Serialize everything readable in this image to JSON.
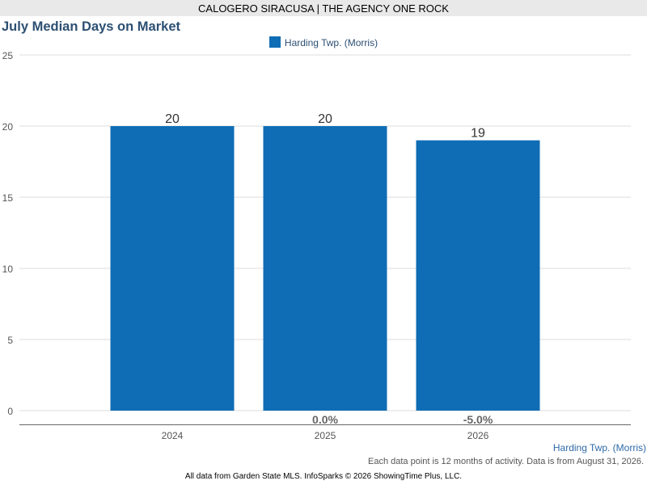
{
  "header": {
    "banner": "CALOGERO SIRACUSA | THE AGENCY ONE ROCK"
  },
  "legend": {
    "label": "Harding Twp. (Morris)"
  },
  "chart_data": {
    "type": "bar",
    "title": "July Median Days on Market",
    "categories": [
      "2024",
      "2025",
      "2026"
    ],
    "series": [
      {
        "name": "Harding Twp. (Morris)",
        "values": [
          20,
          20,
          19
        ],
        "color": "#0f6db5"
      }
    ],
    "value_labels": [
      "20",
      "20",
      "19"
    ],
    "change_labels": [
      "",
      "0.0%",
      "-5.0%"
    ],
    "ylim": [
      0,
      25
    ],
    "yticks": [
      0,
      5,
      10,
      15,
      20,
      25
    ],
    "xlabel": "",
    "ylabel": "",
    "grid": true,
    "legend_position": "top-center"
  },
  "footer": {
    "series_label": "Harding Twp. (Morris)",
    "note": "Each data point is 12 months of activity. Data is from August 31, 2026.",
    "source": "All data from Garden State MLS. InfoSparks © 2026 ShowingTime Plus, LLC."
  }
}
